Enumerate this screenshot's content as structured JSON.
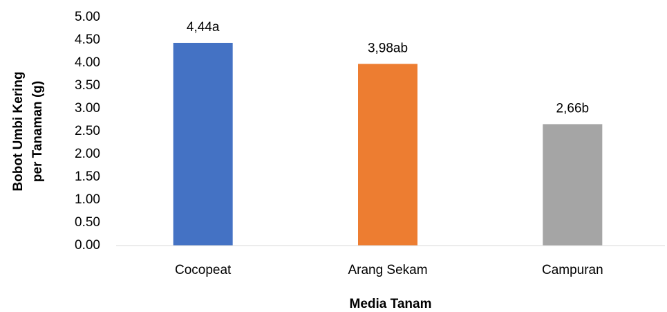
{
  "chart_data": {
    "type": "bar",
    "xlabel": "Media Tanam",
    "ylabel": [
      "Bobot Umbi Kering",
      "per Tanaman (g)"
    ],
    "categories": [
      "Cocopeat",
      "Arang Sekam",
      "Campuran"
    ],
    "values": [
      4.44,
      3.98,
      2.66
    ],
    "value_labels": [
      "4,44a",
      "3,98ab",
      "2,66b"
    ],
    "colors": [
      "#4472c4",
      "#ed7d31",
      "#a5a5a5"
    ],
    "ylim": [
      0,
      5
    ],
    "yticks": [
      {
        "value": 0,
        "label": "0.00"
      },
      {
        "value": 0.5,
        "label": "0.50"
      },
      {
        "value": 1,
        "label": "1.00"
      },
      {
        "value": 1.5,
        "label": "1.50"
      },
      {
        "value": 2,
        "label": "2.00"
      },
      {
        "value": 2.5,
        "label": "2.50"
      },
      {
        "value": 3,
        "label": "3.00"
      },
      {
        "value": 3.5,
        "label": "3.50"
      },
      {
        "value": 4,
        "label": "4.00"
      },
      {
        "value": 4.5,
        "label": "4.50"
      },
      {
        "value": 5,
        "label": "5.00"
      }
    ],
    "grid": false
  }
}
